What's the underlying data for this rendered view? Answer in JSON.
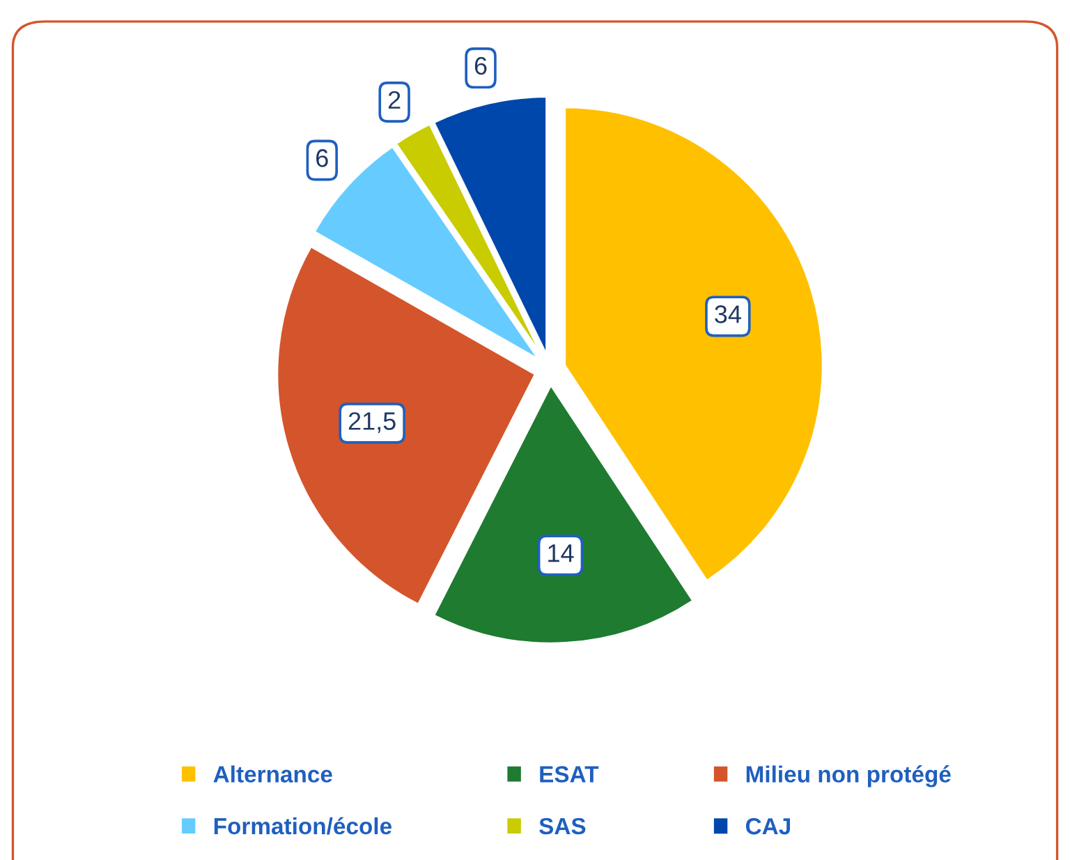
{
  "chart_data": {
    "type": "pie",
    "categories": [
      "Alternance",
      "ESAT",
      "Milieu non protégé",
      "Formation/école",
      "SAS",
      "CAJ"
    ],
    "values": [
      34,
      14,
      21.5,
      6,
      2,
      6
    ],
    "value_labels": [
      "34",
      "14",
      "21,5",
      "6",
      "2",
      "6"
    ],
    "colors": [
      "#ffc000",
      "#1e7b30",
      "#d4552b",
      "#66ccff",
      "#c8cc00",
      "#0047ab"
    ],
    "legend": "bottom"
  }
}
